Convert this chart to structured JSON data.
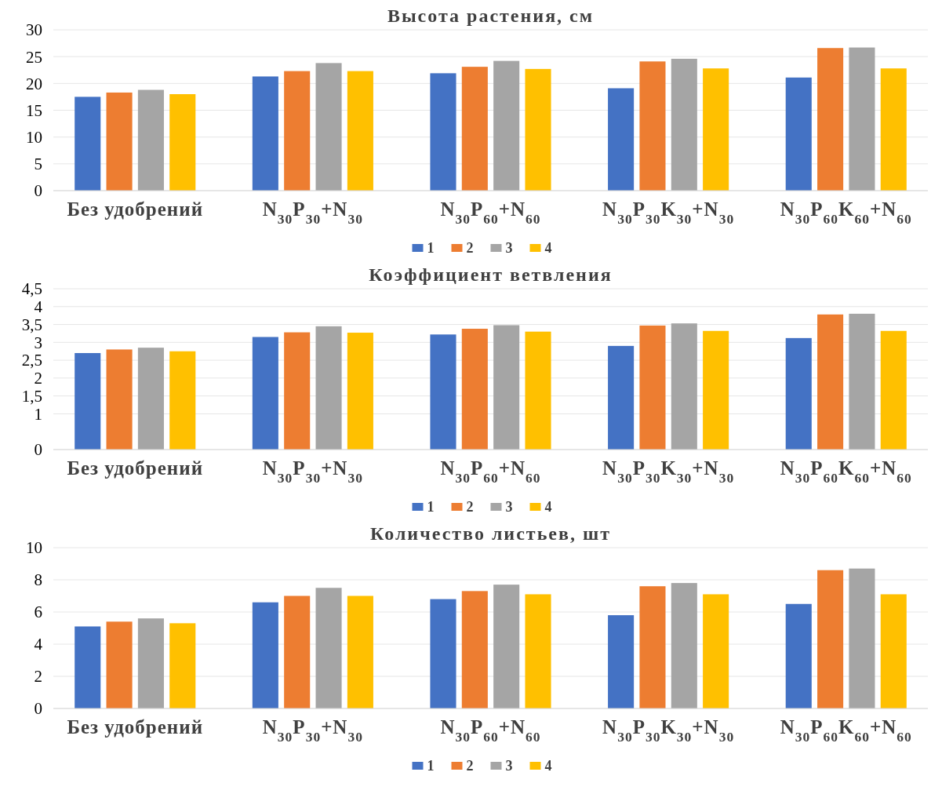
{
  "chart_data": [
    {
      "type": "bar",
      "title": "Высота растения, см",
      "categories": [
        "Без удобрений",
        "N$_{30}$P$_{30}$+N$_{30}$",
        "N$_{30}$P$_{60}$+N$_{60}$",
        "N$_{30}$P$_{30}$K$_{30}$+N$_{30}$",
        "N$_{30}$P$_{60}$K$_{60}$+N$_{60}$"
      ],
      "series": [
        {
          "name": "1",
          "color": "#4472c4",
          "values": [
            17.5,
            21.3,
            21.9,
            19.1,
            21.1
          ]
        },
        {
          "name": "2",
          "color": "#ed7d31",
          "values": [
            18.3,
            22.3,
            23.1,
            24.1,
            26.6
          ]
        },
        {
          "name": "3",
          "color": "#a5a5a5",
          "values": [
            18.8,
            23.8,
            24.2,
            24.6,
            26.7
          ]
        },
        {
          "name": "4",
          "color": "#ffc000",
          "values": [
            18.0,
            22.3,
            22.7,
            22.8,
            22.8
          ]
        }
      ],
      "ylim": [
        0,
        30
      ],
      "yticks": [
        0,
        5,
        10,
        15,
        20,
        25,
        30
      ],
      "grid": "y",
      "legend": "bottom"
    },
    {
      "type": "bar",
      "title": "Коэффициент ветвления",
      "categories": [
        "Без удобрений",
        "N$_{30}$P$_{30}$+N$_{30}$",
        "N$_{30}$P$_{60}$+N$_{60}$",
        "N$_{30}$P$_{30}$K$_{30}$+N$_{30}$",
        "N$_{30}$P$_{60}$K$_{60}$+N$_{60}$"
      ],
      "series": [
        {
          "name": "1",
          "color": "#4472c4",
          "values": [
            2.7,
            3.15,
            3.22,
            2.9,
            3.12
          ]
        },
        {
          "name": "2",
          "color": "#ed7d31",
          "values": [
            2.8,
            3.28,
            3.38,
            3.47,
            3.78
          ]
        },
        {
          "name": "3",
          "color": "#a5a5a5",
          "values": [
            2.85,
            3.45,
            3.48,
            3.53,
            3.8
          ]
        },
        {
          "name": "4",
          "color": "#ffc000",
          "values": [
            2.75,
            3.27,
            3.3,
            3.32,
            3.32
          ]
        }
      ],
      "ylim": [
        0,
        4.5
      ],
      "yticks": [
        0,
        1,
        {
          "value": 1.5,
          "label": "1,5"
        },
        2,
        {
          "value": 2.5,
          "label": "2,5"
        },
        3,
        {
          "value": 3.5,
          "label": "3,5"
        },
        4,
        {
          "value": 4.5,
          "label": "4,5"
        }
      ],
      "grid": "y",
      "legend": "bottom"
    },
    {
      "type": "bar",
      "title": "Количество листьев, шт",
      "categories": [
        "Без удобрений",
        "N$_{30}$P$_{30}$+N$_{30}$",
        "N$_{30}$P$_{60}$+N$_{60}$",
        "N$_{30}$P$_{30}$K$_{30}$+N$_{30}$",
        "N$_{30}$P$_{60}$K$_{60}$+N$_{60}$"
      ],
      "series": [
        {
          "name": "1",
          "color": "#4472c4",
          "values": [
            5.1,
            6.6,
            6.8,
            5.8,
            6.5
          ]
        },
        {
          "name": "2",
          "color": "#ed7d31",
          "values": [
            5.4,
            7.0,
            7.3,
            7.6,
            8.6
          ]
        },
        {
          "name": "3",
          "color": "#a5a5a5",
          "values": [
            5.6,
            7.5,
            7.7,
            7.8,
            8.7
          ]
        },
        {
          "name": "4",
          "color": "#ffc000",
          "values": [
            5.3,
            7.0,
            7.1,
            7.1,
            7.1
          ]
        }
      ],
      "ylim": [
        0,
        10
      ],
      "yticks": [
        0,
        2,
        4,
        6,
        8,
        10
      ],
      "grid": "y",
      "legend": "bottom"
    }
  ]
}
